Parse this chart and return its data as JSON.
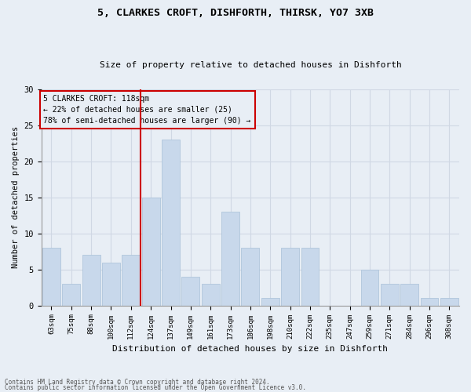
{
  "title1": "5, CLARKES CROFT, DISHFORTH, THIRSK, YO7 3XB",
  "title2": "Size of property relative to detached houses in Dishforth",
  "xlabel": "Distribution of detached houses by size in Dishforth",
  "ylabel": "Number of detached properties",
  "categories": [
    "63sqm",
    "75sqm",
    "88sqm",
    "100sqm",
    "112sqm",
    "124sqm",
    "137sqm",
    "149sqm",
    "161sqm",
    "173sqm",
    "186sqm",
    "198sqm",
    "210sqm",
    "222sqm",
    "235sqm",
    "247sqm",
    "259sqm",
    "271sqm",
    "284sqm",
    "296sqm",
    "308sqm"
  ],
  "values": [
    8,
    3,
    7,
    6,
    7,
    15,
    23,
    4,
    3,
    13,
    8,
    1,
    8,
    8,
    0,
    0,
    5,
    3,
    3,
    1,
    1
  ],
  "bar_color": "#c8d8eb",
  "bar_edge_color": "#a8c0d8",
  "grid_color": "#d0d8e4",
  "bg_color": "#e8eef5",
  "vline_color": "#cc0000",
  "annotation_text": "5 CLARKES CROFT: 118sqm\n← 22% of detached houses are smaller (25)\n78% of semi-detached houses are larger (90) →",
  "annotation_box_color": "#cc0000",
  "ylim": [
    0,
    30
  ],
  "yticks": [
    0,
    5,
    10,
    15,
    20,
    25,
    30
  ],
  "footer1": "Contains HM Land Registry data © Crown copyright and database right 2024.",
  "footer2": "Contains public sector information licensed under the Open Government Licence v3.0."
}
